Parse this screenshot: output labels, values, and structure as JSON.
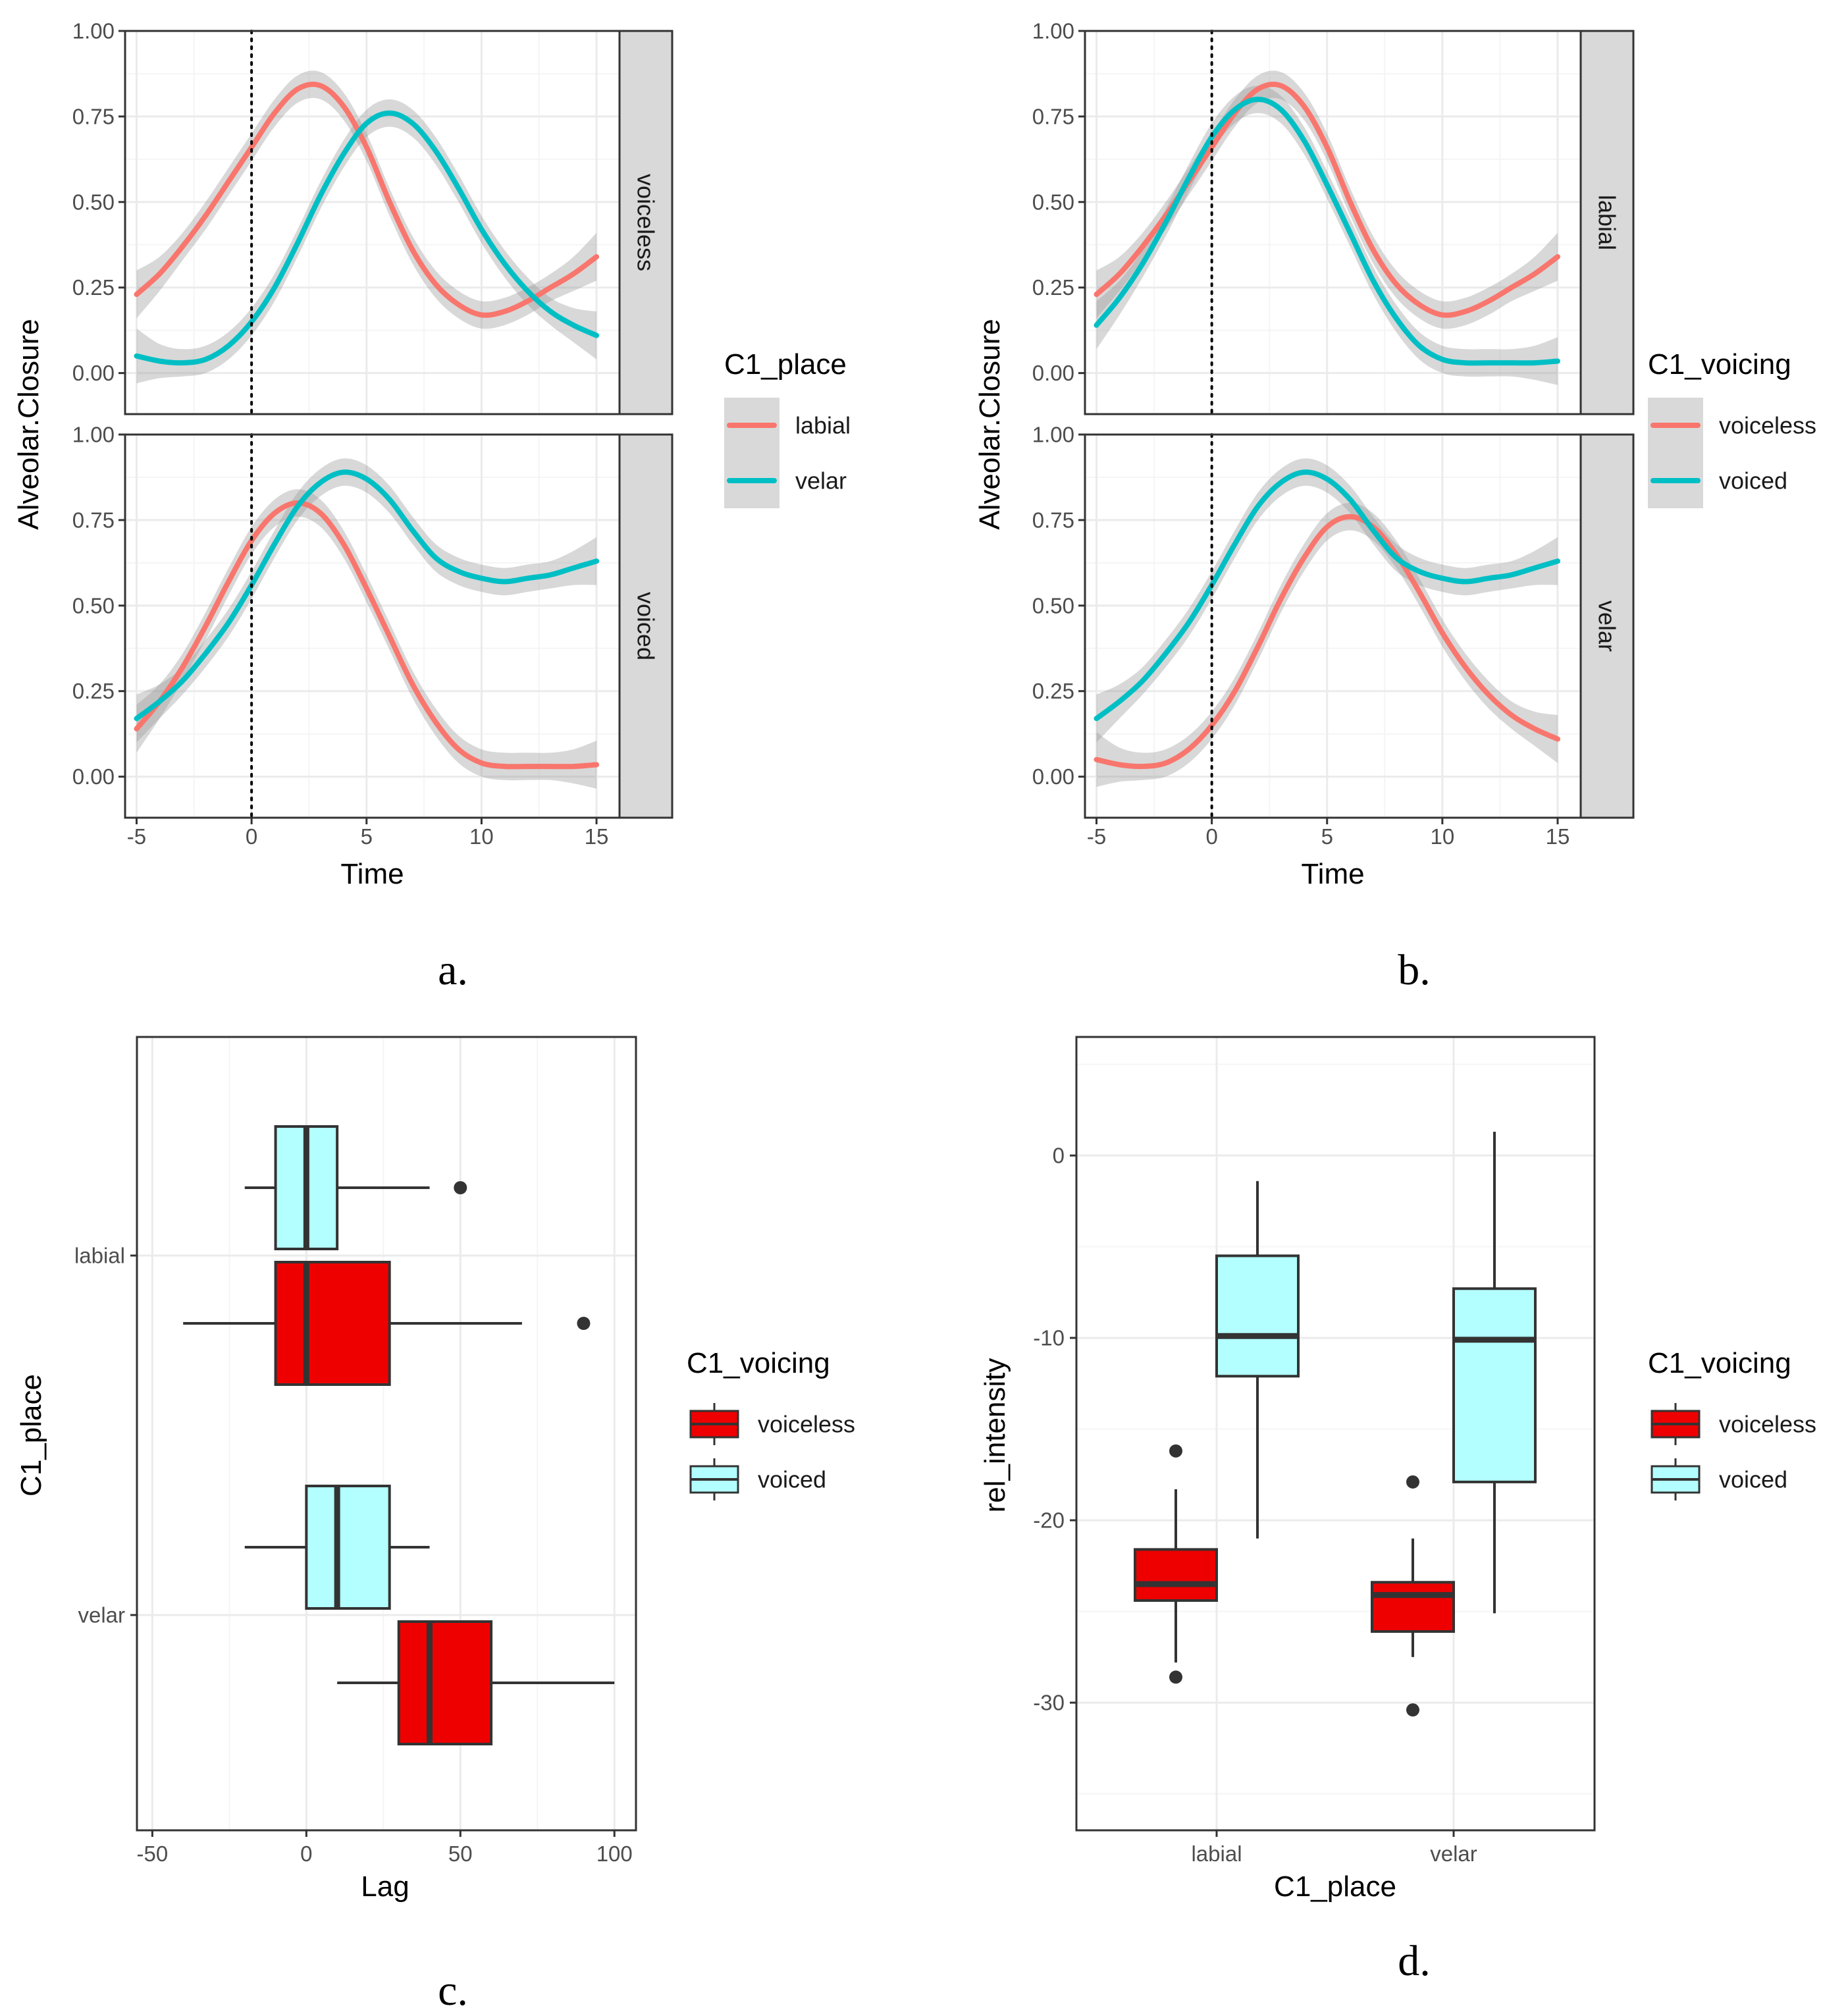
{
  "chart_data": [
    {
      "id": "a",
      "type": "line",
      "panel_label": "a.",
      "xlabel": "Time",
      "ylabel": "Alveolar.Closure",
      "xlim": [
        -5.5,
        16
      ],
      "ylim": [
        -0.12,
        1.0
      ],
      "x_ticks": [
        -5,
        0,
        5,
        10,
        15
      ],
      "x_tick_labels": [
        "-5",
        "0",
        "5",
        "10",
        "15"
      ],
      "y_ticks": [
        0,
        0.25,
        0.5,
        0.75,
        1.0
      ],
      "y_tick_labels": [
        "0.00",
        "0.25",
        "0.50",
        "0.75",
        "1.00"
      ],
      "vline_x": 0,
      "legend": {
        "title": "C1_place",
        "entries": [
          "labial",
          "velar"
        ],
        "position": "right"
      },
      "colors": [
        "#F8766D",
        "#00BFC4"
      ],
      "facets": [
        {
          "strip": "voiceless",
          "series": [
            {
              "name": "labial",
              "x": [
                -5,
                -4,
                -3,
                -2,
                -1,
                0,
                1,
                2,
                3,
                4,
                5,
                6,
                7,
                8,
                9,
                10,
                11,
                12,
                13,
                14,
                15
              ],
              "y": [
                0.23,
                0.29,
                0.37,
                0.46,
                0.56,
                0.66,
                0.76,
                0.83,
                0.84,
                0.78,
                0.66,
                0.5,
                0.36,
                0.26,
                0.2,
                0.17,
                0.18,
                0.21,
                0.25,
                0.29,
                0.34
              ],
              "se": [
                0.07,
                0.05,
                0.04,
                0.04,
                0.04,
                0.04,
                0.04,
                0.04,
                0.04,
                0.04,
                0.04,
                0.04,
                0.04,
                0.04,
                0.04,
                0.04,
                0.04,
                0.04,
                0.04,
                0.05,
                0.07
              ]
            },
            {
              "name": "velar",
              "x": [
                -5,
                -4,
                -3,
                -2,
                -1,
                0,
                1,
                2,
                3,
                4,
                5,
                6,
                7,
                8,
                9,
                10,
                11,
                12,
                13,
                14,
                15
              ],
              "y": [
                0.05,
                0.035,
                0.03,
                0.04,
                0.08,
                0.15,
                0.25,
                0.38,
                0.52,
                0.64,
                0.73,
                0.76,
                0.73,
                0.65,
                0.54,
                0.42,
                0.32,
                0.24,
                0.18,
                0.14,
                0.11
              ],
              "se": [
                0.08,
                0.05,
                0.04,
                0.04,
                0.04,
                0.04,
                0.04,
                0.04,
                0.04,
                0.04,
                0.04,
                0.04,
                0.04,
                0.04,
                0.04,
                0.04,
                0.04,
                0.04,
                0.04,
                0.05,
                0.07
              ]
            }
          ]
        },
        {
          "strip": "voiced",
          "series": [
            {
              "name": "labial",
              "x": [
                -5,
                -4,
                -3,
                -2,
                -1,
                0,
                1,
                2,
                3,
                4,
                5,
                6,
                7,
                8,
                9,
                10,
                11,
                12,
                13,
                14,
                15
              ],
              "y": [
                0.14,
                0.22,
                0.32,
                0.44,
                0.57,
                0.69,
                0.77,
                0.8,
                0.77,
                0.68,
                0.55,
                0.41,
                0.27,
                0.16,
                0.08,
                0.04,
                0.03,
                0.03,
                0.03,
                0.03,
                0.035
              ],
              "se": [
                0.07,
                0.05,
                0.04,
                0.04,
                0.04,
                0.04,
                0.04,
                0.04,
                0.04,
                0.04,
                0.04,
                0.04,
                0.04,
                0.04,
                0.04,
                0.04,
                0.04,
                0.04,
                0.04,
                0.05,
                0.07
              ]
            },
            {
              "name": "velar",
              "x": [
                -5,
                -4,
                -3,
                -2,
                -1,
                0,
                1,
                2,
                3,
                4,
                5,
                6,
                7,
                8,
                9,
                10,
                11,
                12,
                13,
                14,
                15
              ],
              "y": [
                0.17,
                0.22,
                0.28,
                0.36,
                0.45,
                0.56,
                0.68,
                0.79,
                0.86,
                0.89,
                0.87,
                0.81,
                0.72,
                0.64,
                0.6,
                0.58,
                0.57,
                0.58,
                0.59,
                0.61,
                0.63
              ],
              "se": [
                0.07,
                0.05,
                0.04,
                0.04,
                0.04,
                0.04,
                0.04,
                0.04,
                0.04,
                0.04,
                0.04,
                0.04,
                0.04,
                0.04,
                0.04,
                0.04,
                0.04,
                0.04,
                0.04,
                0.05,
                0.07
              ]
            }
          ]
        }
      ]
    },
    {
      "id": "b",
      "type": "line",
      "panel_label": "b.",
      "xlabel": "Time",
      "ylabel": "Alveolar.Closure",
      "xlim": [
        -5.5,
        16
      ],
      "ylim": [
        -0.12,
        1.0
      ],
      "x_ticks": [
        -5,
        0,
        5,
        10,
        15
      ],
      "x_tick_labels": [
        "-5",
        "0",
        "5",
        "10",
        "15"
      ],
      "y_ticks": [
        0,
        0.25,
        0.5,
        0.75,
        1.0
      ],
      "y_tick_labels": [
        "0.00",
        "0.25",
        "0.50",
        "0.75",
        "1.00"
      ],
      "vline_x": 0,
      "legend": {
        "title": "C1_voicing",
        "entries": [
          "voiceless",
          "voiced"
        ],
        "position": "right"
      },
      "colors": [
        "#F8766D",
        "#00BFC4"
      ],
      "facets": [
        {
          "strip": "labial",
          "series": [
            {
              "name": "voiceless",
              "x": [
                -5,
                -4,
                -3,
                -2,
                -1,
                0,
                1,
                2,
                3,
                4,
                5,
                6,
                7,
                8,
                9,
                10,
                11,
                12,
                13,
                14,
                15
              ],
              "y": [
                0.23,
                0.29,
                0.37,
                0.46,
                0.56,
                0.66,
                0.76,
                0.83,
                0.84,
                0.78,
                0.66,
                0.5,
                0.36,
                0.26,
                0.2,
                0.17,
                0.18,
                0.21,
                0.25,
                0.29,
                0.34
              ],
              "se": [
                0.07,
                0.05,
                0.04,
                0.04,
                0.04,
                0.04,
                0.04,
                0.04,
                0.04,
                0.04,
                0.04,
                0.04,
                0.04,
                0.04,
                0.04,
                0.04,
                0.04,
                0.04,
                0.04,
                0.05,
                0.07
              ]
            },
            {
              "name": "voiced",
              "x": [
                -5,
                -4,
                -3,
                -2,
                -1,
                0,
                1,
                2,
                3,
                4,
                5,
                6,
                7,
                8,
                9,
                10,
                11,
                12,
                13,
                14,
                15
              ],
              "y": [
                0.14,
                0.22,
                0.32,
                0.44,
                0.57,
                0.69,
                0.77,
                0.8,
                0.77,
                0.68,
                0.55,
                0.41,
                0.27,
                0.16,
                0.08,
                0.04,
                0.03,
                0.03,
                0.03,
                0.03,
                0.035
              ],
              "se": [
                0.07,
                0.05,
                0.04,
                0.04,
                0.04,
                0.04,
                0.04,
                0.04,
                0.04,
                0.04,
                0.04,
                0.04,
                0.04,
                0.04,
                0.04,
                0.04,
                0.04,
                0.04,
                0.04,
                0.05,
                0.07
              ]
            }
          ]
        },
        {
          "strip": "velar",
          "series": [
            {
              "name": "voiceless",
              "x": [
                -5,
                -4,
                -3,
                -2,
                -1,
                0,
                1,
                2,
                3,
                4,
                5,
                6,
                7,
                8,
                9,
                10,
                11,
                12,
                13,
                14,
                15
              ],
              "y": [
                0.05,
                0.035,
                0.03,
                0.04,
                0.08,
                0.15,
                0.25,
                0.38,
                0.52,
                0.64,
                0.73,
                0.76,
                0.73,
                0.65,
                0.54,
                0.42,
                0.32,
                0.24,
                0.18,
                0.14,
                0.11
              ],
              "se": [
                0.08,
                0.05,
                0.04,
                0.04,
                0.04,
                0.04,
                0.04,
                0.04,
                0.04,
                0.04,
                0.04,
                0.04,
                0.04,
                0.04,
                0.04,
                0.04,
                0.04,
                0.04,
                0.04,
                0.05,
                0.07
              ]
            },
            {
              "name": "voiced",
              "x": [
                -5,
                -4,
                -3,
                -2,
                -1,
                0,
                1,
                2,
                3,
                4,
                5,
                6,
                7,
                8,
                9,
                10,
                11,
                12,
                13,
                14,
                15
              ],
              "y": [
                0.17,
                0.22,
                0.28,
                0.36,
                0.45,
                0.56,
                0.68,
                0.79,
                0.86,
                0.89,
                0.87,
                0.81,
                0.72,
                0.64,
                0.6,
                0.58,
                0.57,
                0.58,
                0.59,
                0.61,
                0.63
              ],
              "se": [
                0.07,
                0.05,
                0.04,
                0.04,
                0.04,
                0.04,
                0.04,
                0.04,
                0.04,
                0.04,
                0.04,
                0.04,
                0.04,
                0.04,
                0.04,
                0.04,
                0.04,
                0.04,
                0.04,
                0.05,
                0.07
              ]
            }
          ]
        }
      ]
    },
    {
      "id": "c",
      "type": "box",
      "orientation": "horizontal",
      "panel_label": "c.",
      "xlabel": "Lag",
      "ylabel": "C1_place",
      "xlim": [
        -55,
        107
      ],
      "x_ticks": [
        -50,
        0,
        50,
        100
      ],
      "x_tick_labels": [
        "-50",
        "0",
        "50",
        "100"
      ],
      "categories": [
        "labial",
        "velar"
      ],
      "legend": {
        "title": "C1_voicing",
        "entries": [
          "voiceless",
          "voiced"
        ],
        "position": "right"
      },
      "colors": {
        "voiceless": "#EE0000",
        "voiced": "#B3FFFF"
      },
      "boxes": [
        {
          "category": "labial",
          "group": "voiced",
          "whisker_low": -20,
          "q1": -10,
          "median": 0,
          "q3": 10,
          "whisker_high": 40,
          "outliers": [
            50
          ]
        },
        {
          "category": "labial",
          "group": "voiceless",
          "whisker_low": -40,
          "q1": -10,
          "median": 0,
          "q3": 27,
          "whisker_high": 70,
          "outliers": [
            90
          ]
        },
        {
          "category": "velar",
          "group": "voiced",
          "whisker_low": -20,
          "q1": 0,
          "median": 10,
          "q3": 27,
          "whisker_high": 40,
          "outliers": []
        },
        {
          "category": "velar",
          "group": "voiceless",
          "whisker_low": 10,
          "q1": 30,
          "median": 40,
          "q3": 60,
          "whisker_high": 100,
          "outliers": []
        }
      ]
    },
    {
      "id": "d",
      "type": "box",
      "orientation": "vertical",
      "panel_label": "d.",
      "xlabel": "C1_place",
      "ylabel": "rel_intensity",
      "ylim": [
        -37,
        6.5
      ],
      "y_ticks": [
        0,
        -10,
        -20,
        -30
      ],
      "y_tick_labels": [
        "0",
        "-10",
        "-20",
        "-30"
      ],
      "categories": [
        "labial",
        "velar"
      ],
      "legend": {
        "title": "C1_voicing",
        "entries": [
          "voiceless",
          "voiced"
        ],
        "position": "right"
      },
      "colors": {
        "voiceless": "#EE0000",
        "voiced": "#B3FFFF"
      },
      "boxes": [
        {
          "category": "labial",
          "group": "voiceless",
          "whisker_low": -27.8,
          "q1": -24.4,
          "median": -23.5,
          "q3": -21.6,
          "whisker_high": -18.3,
          "outliers": [
            -16.2,
            -28.6
          ]
        },
        {
          "category": "labial",
          "group": "voiced",
          "whisker_low": -21,
          "q1": -12.1,
          "median": -9.9,
          "q3": -5.5,
          "whisker_high": -1.4,
          "outliers": []
        },
        {
          "category": "velar",
          "group": "voiceless",
          "whisker_low": -27.5,
          "q1": -26.1,
          "median": -24.1,
          "q3": -23.4,
          "whisker_high": -21,
          "outliers": [
            -17.9,
            -30.4
          ]
        },
        {
          "category": "velar",
          "group": "voiced",
          "whisker_low": -25.1,
          "q1": -17.9,
          "median": -10.1,
          "q3": -7.3,
          "whisker_high": 1.3,
          "outliers": []
        }
      ]
    }
  ]
}
